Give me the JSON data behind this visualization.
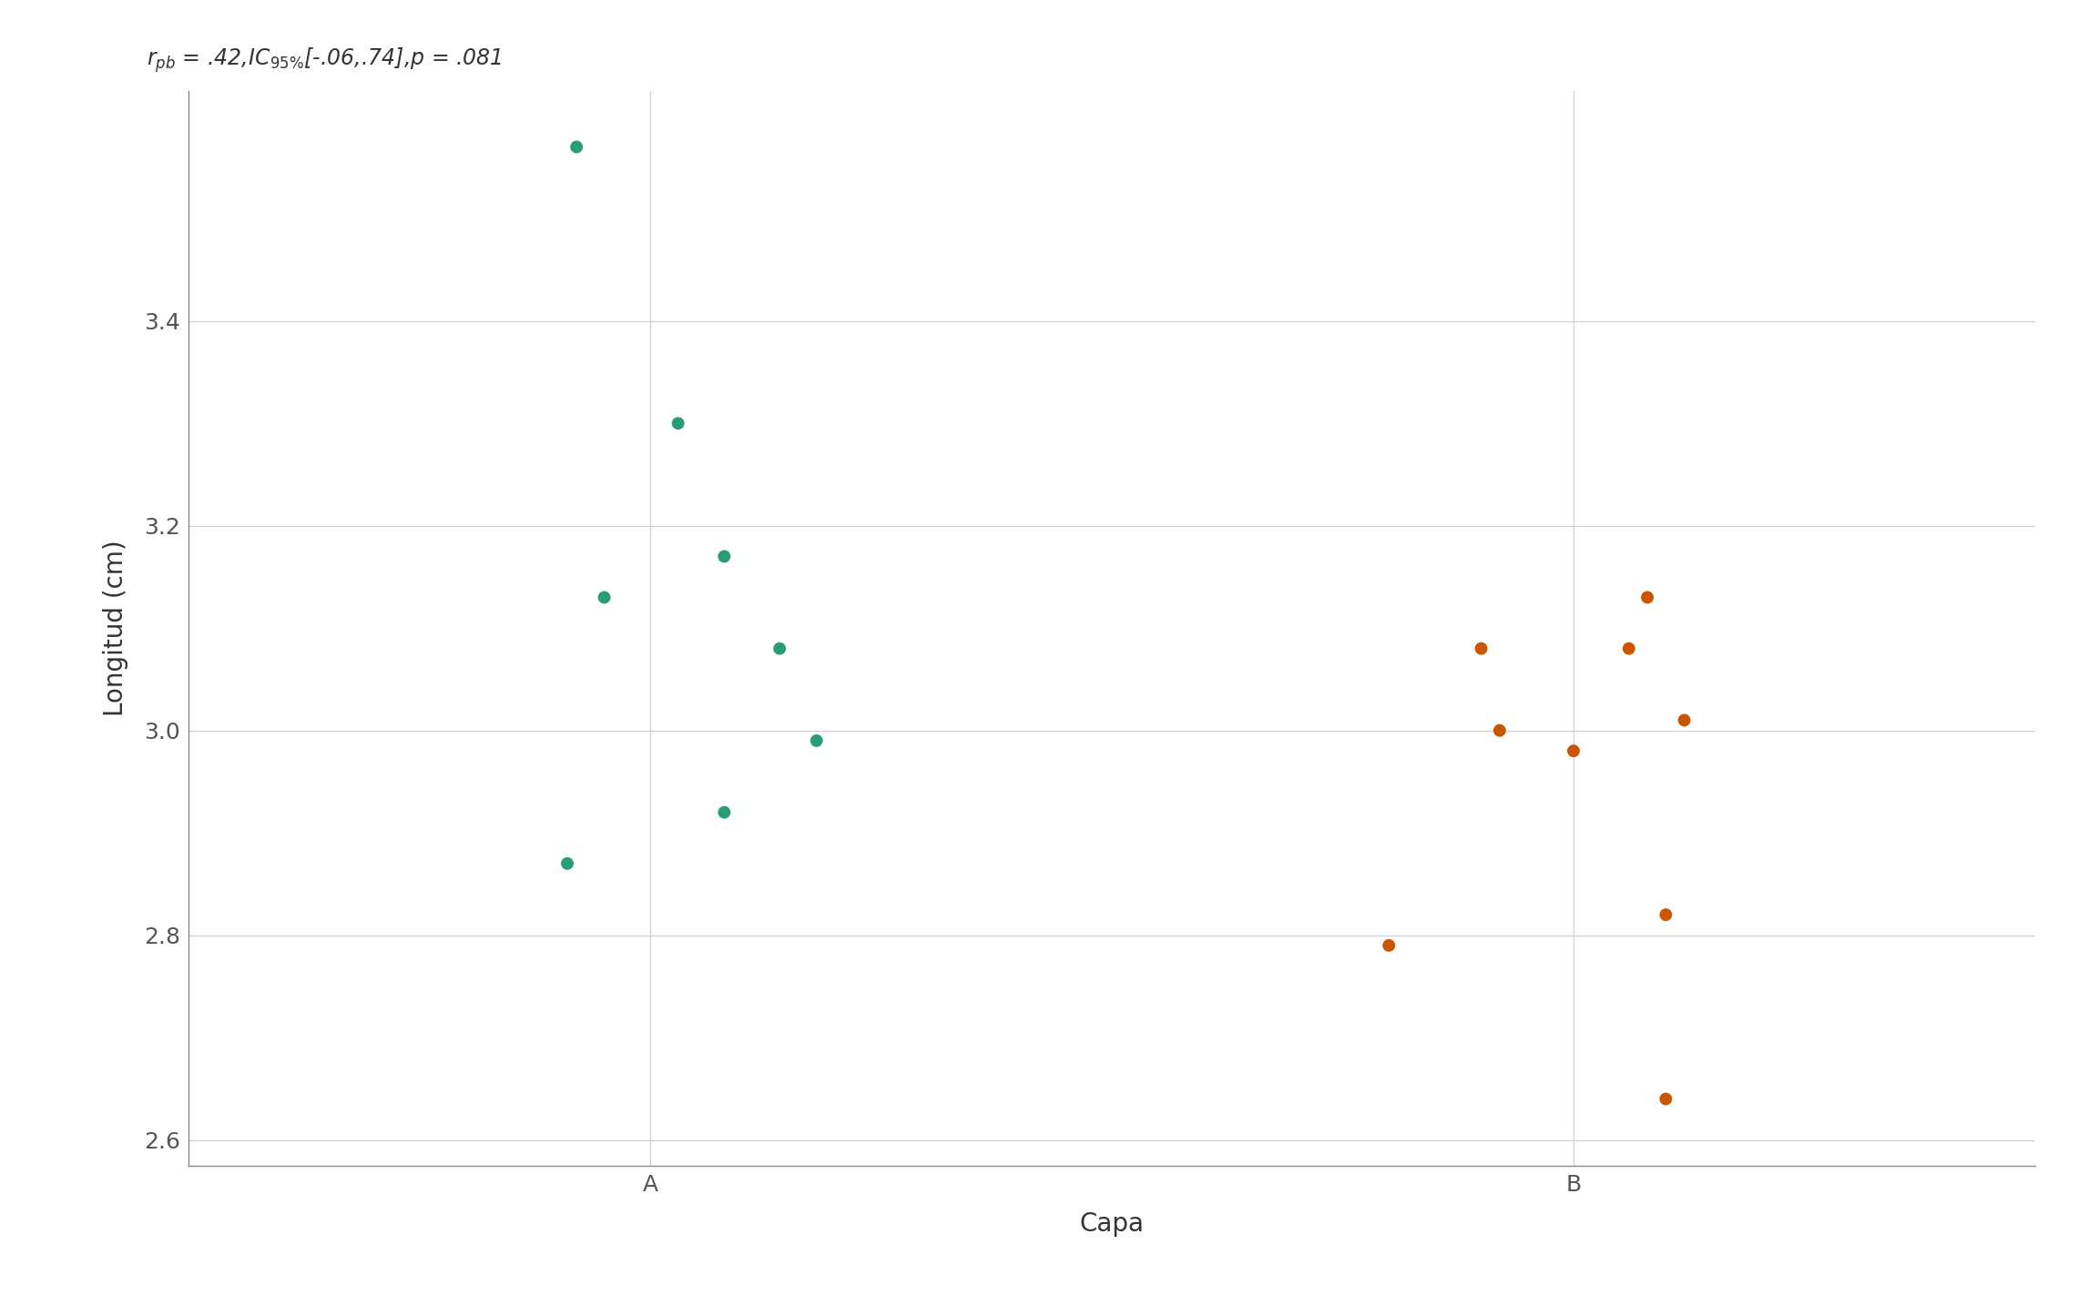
{
  "group_A": {
    "x_jitter": [
      -0.08,
      0.03,
      0.08,
      -0.05,
      0.14,
      0.18,
      0.08,
      -0.09
    ],
    "y": [
      3.57,
      3.3,
      3.17,
      3.13,
      3.08,
      2.99,
      2.92,
      2.87
    ],
    "color": "#2a9d78",
    "label": "A"
  },
  "group_B": {
    "x_jitter": [
      0.08,
      -0.1,
      0.06,
      0.12,
      -0.08,
      0.0,
      0.1,
      -0.2,
      0.1
    ],
    "y": [
      3.13,
      3.08,
      3.08,
      3.01,
      3.0,
      2.98,
      2.82,
      2.79,
      2.64
    ],
    "color": "#cc5500",
    "label": "B"
  },
  "xlabel": "Capa",
  "ylabel": "Longitud (cm)",
  "ylim": [
    2.575,
    3.625
  ],
  "yticks": [
    2.6,
    2.8,
    3.0,
    3.2,
    3.4
  ],
  "xlim": [
    -0.5,
    1.5
  ],
  "xticks": [
    0,
    1
  ],
  "xticklabels": [
    "A",
    "B"
  ],
  "background_color": "#ffffff",
  "grid_color": "#d0d0d0",
  "marker_size": 100,
  "title_fontsize": 17,
  "label_fontsize": 20,
  "tick_fontsize": 18,
  "spine_color": "#888888"
}
